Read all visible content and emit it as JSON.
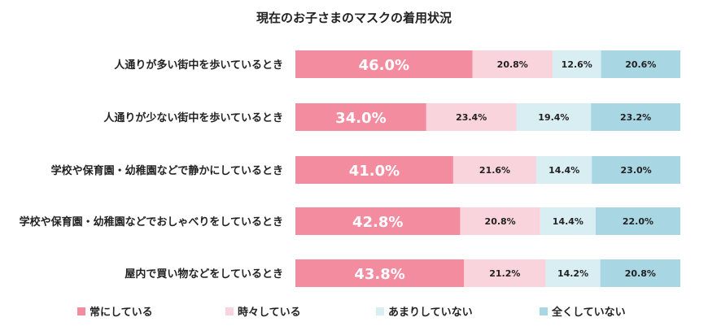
{
  "chart_data": {
    "type": "bar",
    "orientation": "horizontal",
    "stacked": "100%",
    "title": "現在のお子さまのマスクの着用状況",
    "categories": [
      "人通りが多い街中を歩いているとき",
      "人通りが少ない街中を歩いているとき",
      "学校や保育園・幼稚園などで静かにしているとき",
      "学校や保育園・幼稚園などでおしゃべりをしているとき",
      "屋内で買い物などをしているとき"
    ],
    "series": [
      {
        "name": "常にしている",
        "color": "#f48ca0",
        "values": [
          46.0,
          34.0,
          41.0,
          42.8,
          43.8
        ],
        "labels": [
          "46.0%",
          "34.0%",
          "41.0%",
          "42.8%",
          "43.8%"
        ]
      },
      {
        "name": "時々している",
        "color": "#fad4dc",
        "values": [
          20.8,
          23.4,
          21.6,
          20.8,
          21.2
        ],
        "labels": [
          "20.8%",
          "23.4%",
          "21.6%",
          "20.8%",
          "21.2%"
        ]
      },
      {
        "name": "あまりしていない",
        "color": "#d9eef3",
        "values": [
          12.6,
          19.4,
          14.4,
          14.4,
          14.2
        ],
        "labels": [
          "12.6%",
          "19.4%",
          "14.4%",
          "14.4%",
          "14.2%"
        ]
      },
      {
        "name": "全くしていない",
        "color": "#a9d6e3",
        "values": [
          20.6,
          23.2,
          23.0,
          22.0,
          20.8
        ],
        "labels": [
          "20.6%",
          "23.2%",
          "23.0%",
          "22.0%",
          "20.8%"
        ]
      }
    ],
    "xlim": [
      0,
      100
    ],
    "grid": false,
    "legend_position": "bottom"
  }
}
